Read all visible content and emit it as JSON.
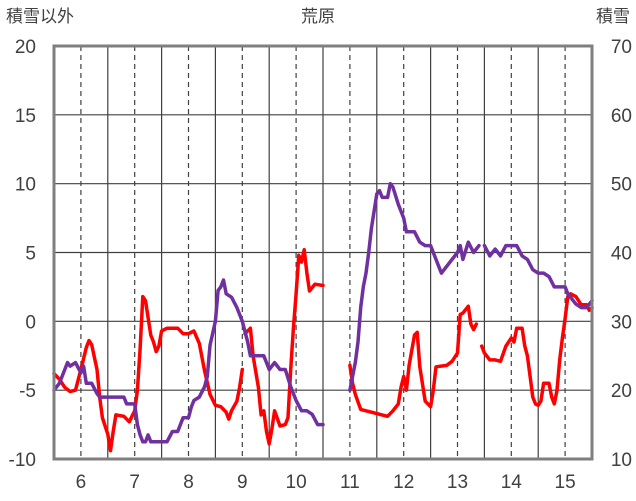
{
  "chart_data": {
    "type": "line",
    "title": "荒原",
    "y_left_label": "積雪以外",
    "y_right_label": "積雪",
    "y_left_range": [
      -10,
      20
    ],
    "y_right_range": [
      10,
      70
    ],
    "y_left_ticks": [
      "20",
      "15",
      "10",
      "5",
      "0",
      "-5",
      "-10"
    ],
    "y_right_ticks": [
      "70",
      "60",
      "50",
      "40",
      "30",
      "20",
      "10"
    ],
    "x_range": [
      5.5,
      15.5
    ],
    "x_ticks": [
      "6",
      "7",
      "8",
      "9",
      "10",
      "11",
      "12",
      "13",
      "14",
      "15"
    ],
    "grid": true,
    "colors": {
      "red": "#ff0000",
      "purple": "#7030a0",
      "axis": "#7f7f7f",
      "grid": "#404040"
    },
    "series": [
      {
        "axis": "left",
        "color": "#ff0000",
        "segments": [
          [
            [
              5.5,
              -3.8
            ],
            [
              5.6,
              -4.2
            ],
            [
              5.7,
              -4.8
            ],
            [
              5.8,
              -5.1
            ],
            [
              5.9,
              -5.0
            ],
            [
              6.0,
              -3.5
            ],
            [
              6.1,
              -1.9
            ],
            [
              6.15,
              -1.4
            ],
            [
              6.2,
              -1.7
            ],
            [
              6.3,
              -3.5
            ],
            [
              6.35,
              -5.5
            ],
            [
              6.4,
              -7.0
            ],
            [
              6.5,
              -8.2
            ],
            [
              6.55,
              -9.4
            ],
            [
              6.6,
              -8.0
            ],
            [
              6.65,
              -6.8
            ],
            [
              6.8,
              -6.9
            ],
            [
              6.9,
              -7.3
            ],
            [
              7.0,
              -6.5
            ],
            [
              7.05,
              -5.0
            ],
            [
              7.1,
              -2.0
            ],
            [
              7.15,
              1.8
            ],
            [
              7.2,
              1.5
            ],
            [
              7.3,
              -1.0
            ],
            [
              7.35,
              -1.5
            ],
            [
              7.4,
              -2.2
            ],
            [
              7.45,
              -1.8
            ],
            [
              7.5,
              -0.7
            ],
            [
              7.6,
              -0.5
            ],
            [
              7.8,
              -0.5
            ],
            [
              7.9,
              -0.9
            ],
            [
              8.0,
              -0.9
            ],
            [
              8.1,
              -0.7
            ],
            [
              8.2,
              -1.6
            ],
            [
              8.3,
              -3.6
            ],
            [
              8.4,
              -5.3
            ],
            [
              8.5,
              -6.1
            ],
            [
              8.6,
              -6.2
            ],
            [
              8.7,
              -6.6
            ],
            [
              8.75,
              -7.1
            ],
            [
              8.8,
              -6.5
            ],
            [
              8.9,
              -5.8
            ],
            [
              8.95,
              -4.8
            ],
            [
              9.0,
              -3.5
            ]
          ],
          [
            [
              9.05,
              -0.9
            ],
            [
              9.15,
              -0.5
            ],
            [
              9.2,
              -2.5
            ],
            [
              9.3,
              -4.8
            ],
            [
              9.35,
              -6.8
            ],
            [
              9.4,
              -6.5
            ],
            [
              9.45,
              -8.0
            ],
            [
              9.5,
              -8.9
            ],
            [
              9.55,
              -7.8
            ],
            [
              9.6,
              -6.5
            ],
            [
              9.7,
              -7.6
            ],
            [
              9.8,
              -7.5
            ],
            [
              9.85,
              -7.0
            ],
            [
              9.9,
              -3.5
            ],
            [
              9.95,
              -0.5
            ],
            [
              10.0,
              2.0
            ],
            [
              10.05,
              4.8
            ],
            [
              10.1,
              4.3
            ],
            [
              10.15,
              5.2
            ],
            [
              10.2,
              3.5
            ],
            [
              10.25,
              2.2
            ],
            [
              10.35,
              2.7
            ],
            [
              10.5,
              2.6
            ]
          ],
          [
            [
              11.0,
              -3.2
            ],
            [
              11.05,
              -4.5
            ],
            [
              11.1,
              -5.3
            ],
            [
              11.2,
              -6.4
            ],
            [
              11.3,
              -6.5
            ],
            [
              11.5,
              -6.7
            ],
            [
              11.7,
              -6.9
            ],
            [
              11.8,
              -6.5
            ],
            [
              11.9,
              -6.0
            ],
            [
              11.95,
              -4.8
            ],
            [
              12.0,
              -4.0
            ],
            [
              12.05,
              -5.0
            ],
            [
              12.1,
              -3.2
            ],
            [
              12.2,
              -1.0
            ],
            [
              12.25,
              -0.8
            ],
            [
              12.3,
              -3.3
            ],
            [
              12.4,
              -5.8
            ],
            [
              12.5,
              -6.2
            ],
            [
              12.55,
              -5.0
            ],
            [
              12.6,
              -3.3
            ],
            [
              12.8,
              -3.2
            ],
            [
              12.9,
              -2.9
            ],
            [
              13.0,
              -2.3
            ],
            [
              13.05,
              0.5
            ],
            [
              13.1,
              0.6
            ],
            [
              13.2,
              1.1
            ],
            [
              13.25,
              -0.2
            ],
            [
              13.3,
              -0.6
            ],
            [
              13.35,
              -0.2
            ]
          ],
          [
            [
              13.45,
              -1.8
            ],
            [
              13.5,
              -2.3
            ],
            [
              13.6,
              -2.8
            ],
            [
              13.7,
              -2.8
            ],
            [
              13.8,
              -2.9
            ],
            [
              13.9,
              -1.8
            ],
            [
              14.0,
              -1.2
            ],
            [
              14.05,
              -1.5
            ],
            [
              14.1,
              -0.5
            ],
            [
              14.2,
              -0.5
            ],
            [
              14.25,
              -1.8
            ],
            [
              14.3,
              -2.5
            ],
            [
              14.35,
              -4.0
            ],
            [
              14.4,
              -5.5
            ],
            [
              14.45,
              -6.0
            ],
            [
              14.5,
              -6.1
            ],
            [
              14.55,
              -5.8
            ],
            [
              14.6,
              -4.5
            ],
            [
              14.7,
              -4.5
            ],
            [
              14.75,
              -5.5
            ],
            [
              14.8,
              -6.0
            ],
            [
              14.85,
              -5.0
            ],
            [
              14.9,
              -2.8
            ],
            [
              14.95,
              -1.2
            ],
            [
              15.0,
              0.2
            ],
            [
              15.05,
              1.8
            ],
            [
              15.1,
              2.0
            ],
            [
              15.2,
              1.8
            ],
            [
              15.3,
              1.2
            ],
            [
              15.4,
              1.2
            ],
            [
              15.45,
              0.8
            ],
            [
              15.5,
              1.0
            ]
          ]
        ]
      },
      {
        "axis": "right",
        "color": "#7030a0",
        "segments": [
          [
            [
              5.5,
              20.0
            ],
            [
              5.6,
              21.0
            ],
            [
              5.7,
              23.0
            ],
            [
              5.75,
              24.0
            ],
            [
              5.8,
              23.5
            ],
            [
              5.9,
              24.0
            ],
            [
              6.0,
              22.5
            ],
            [
              6.05,
              23.5
            ],
            [
              6.1,
              21.0
            ],
            [
              6.2,
              21.0
            ],
            [
              6.3,
              19.5
            ],
            [
              6.35,
              19.0
            ],
            [
              6.5,
              19.0
            ],
            [
              6.6,
              19.0
            ],
            [
              6.8,
              19.0
            ],
            [
              6.85,
              18.0
            ],
            [
              7.0,
              18.0
            ],
            [
              7.05,
              15.0
            ],
            [
              7.1,
              13.5
            ],
            [
              7.15,
              12.5
            ],
            [
              7.2,
              12.5
            ],
            [
              7.25,
              13.5
            ],
            [
              7.3,
              12.5
            ],
            [
              7.5,
              12.5
            ],
            [
              7.6,
              12.5
            ],
            [
              7.7,
              14.0
            ],
            [
              7.8,
              14.0
            ],
            [
              7.9,
              16.0
            ],
            [
              8.0,
              16.0
            ],
            [
              8.05,
              17.5
            ],
            [
              8.1,
              18.5
            ],
            [
              8.2,
              19.0
            ],
            [
              8.3,
              20.5
            ],
            [
              8.35,
              22.0
            ],
            [
              8.4,
              26.5
            ],
            [
              8.5,
              30.0
            ],
            [
              8.55,
              34.5
            ],
            [
              8.6,
              35.0
            ],
            [
              8.65,
              36.0
            ],
            [
              8.7,
              34.0
            ],
            [
              8.8,
              33.5
            ],
            [
              8.9,
              32.0
            ],
            [
              9.0,
              30.0
            ],
            [
              9.1,
              27.0
            ],
            [
              9.15,
              25.0
            ],
            [
              9.2,
              25.0
            ],
            [
              9.3,
              25.0
            ],
            [
              9.4,
              25.0
            ],
            [
              9.45,
              24.0
            ],
            [
              9.5,
              23.0
            ],
            [
              9.6,
              24.0
            ],
            [
              9.7,
              23.0
            ],
            [
              9.8,
              23.0
            ],
            [
              9.9,
              20.5
            ],
            [
              10.0,
              18.5
            ],
            [
              10.1,
              17.0
            ],
            [
              10.2,
              17.0
            ],
            [
              10.3,
              16.5
            ],
            [
              10.4,
              15.0
            ],
            [
              10.5,
              15.0
            ]
          ],
          [
            [
              11.0,
              20.0
            ],
            [
              11.1,
              24.0
            ],
            [
              11.15,
              27.0
            ],
            [
              11.2,
              32.0
            ],
            [
              11.25,
              35.0
            ],
            [
              11.3,
              37.0
            ],
            [
              11.35,
              40.0
            ],
            [
              11.4,
              43.5
            ],
            [
              11.5,
              48.5
            ],
            [
              11.55,
              49.0
            ],
            [
              11.6,
              48.0
            ],
            [
              11.7,
              48.0
            ],
            [
              11.75,
              50.0
            ],
            [
              11.8,
              49.5
            ],
            [
              11.9,
              47.0
            ],
            [
              12.0,
              45.0
            ],
            [
              12.05,
              43.0
            ],
            [
              12.2,
              43.0
            ],
            [
              12.3,
              41.5
            ],
            [
              12.4,
              41.0
            ],
            [
              12.5,
              41.0
            ],
            [
              12.6,
              39.0
            ],
            [
              12.65,
              38.0
            ],
            [
              12.7,
              37.0
            ],
            [
              12.75,
              37.5
            ],
            [
              12.85,
              38.5
            ],
            [
              13.0,
              40.0
            ],
            [
              13.05,
              41.0
            ],
            [
              13.1,
              39.0
            ],
            [
              13.2,
              41.5
            ],
            [
              13.3,
              40.0
            ],
            [
              13.4,
              41.0
            ]
          ],
          [
            [
              13.5,
              41.0
            ],
            [
              13.6,
              39.5
            ],
            [
              13.7,
              40.5
            ],
            [
              13.8,
              39.5
            ],
            [
              13.9,
              41.0
            ],
            [
              14.0,
              41.0
            ],
            [
              14.1,
              41.0
            ],
            [
              14.2,
              39.5
            ],
            [
              14.3,
              39.0
            ],
            [
              14.4,
              37.5
            ],
            [
              14.5,
              37.0
            ],
            [
              14.6,
              37.0
            ],
            [
              14.7,
              36.5
            ],
            [
              14.8,
              35.0
            ],
            [
              14.9,
              35.0
            ],
            [
              15.0,
              35.0
            ],
            [
              15.05,
              34.0
            ],
            [
              15.1,
              33.5
            ],
            [
              15.2,
              32.5
            ],
            [
              15.3,
              32.0
            ],
            [
              15.4,
              32.0
            ],
            [
              15.5,
              33.0
            ]
          ]
        ]
      }
    ]
  }
}
